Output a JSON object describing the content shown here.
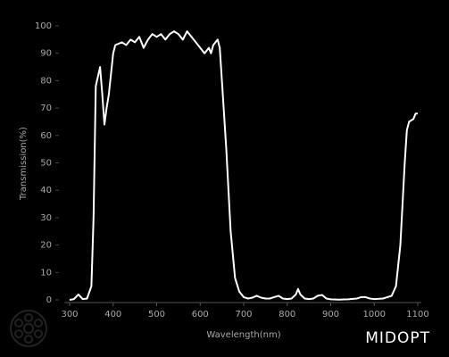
{
  "chart_data": {
    "type": "line",
    "xlabel": "Wavelength(nm)",
    "ylabel": "Transmission(%)",
    "color": "#ffffff",
    "x": [
      300,
      310,
      320,
      330,
      340,
      350,
      355,
      360,
      370,
      375,
      380,
      385,
      390,
      400,
      405,
      420,
      430,
      440,
      450,
      460,
      470,
      480,
      490,
      500,
      510,
      520,
      530,
      540,
      550,
      560,
      570,
      580,
      590,
      600,
      610,
      620,
      625,
      630,
      640,
      645,
      650,
      660,
      670,
      680,
      690,
      700,
      710,
      720,
      730,
      740,
      750,
      760,
      770,
      780,
      790,
      800,
      810,
      820,
      825,
      830,
      840,
      850,
      860,
      870,
      880,
      890,
      900,
      920,
      940,
      960,
      970,
      980,
      990,
      1000,
      1020,
      1040,
      1050,
      1060,
      1070,
      1075,
      1080,
      1090,
      1095,
      1100
    ],
    "values": [
      0,
      0.3,
      2,
      0.3,
      0.5,
      5,
      30,
      78,
      85,
      75,
      64,
      70,
      75,
      90,
      93,
      94,
      93,
      95,
      94,
      96,
      92,
      95,
      97,
      96,
      97,
      95,
      97,
      98,
      97,
      95,
      98,
      96,
      94,
      92,
      90,
      92,
      90,
      93,
      95,
      92,
      80,
      55,
      25,
      8,
      3,
      1,
      0.5,
      0.8,
      1.5,
      0.8,
      0.5,
      0.5,
      1,
      1.5,
      0.5,
      0.3,
      0.5,
      2,
      4,
      2,
      0.5,
      0.3,
      0.5,
      1.5,
      1.8,
      0.5,
      0.2,
      0.1,
      0.2,
      0.5,
      1,
      1,
      0.5,
      0.3,
      0.5,
      1.5,
      5,
      20,
      50,
      62,
      65,
      66,
      68,
      68
    ],
    "xlim": [
      300,
      1100
    ],
    "xticks": [
      300,
      400,
      500,
      600,
      700,
      800,
      900,
      1000,
      1100
    ],
    "ylim": [
      0,
      100
    ],
    "yticks": [
      0,
      10,
      20,
      30,
      40,
      50,
      60,
      70,
      80,
      90,
      100
    ]
  },
  "logo": "MIDOPT"
}
